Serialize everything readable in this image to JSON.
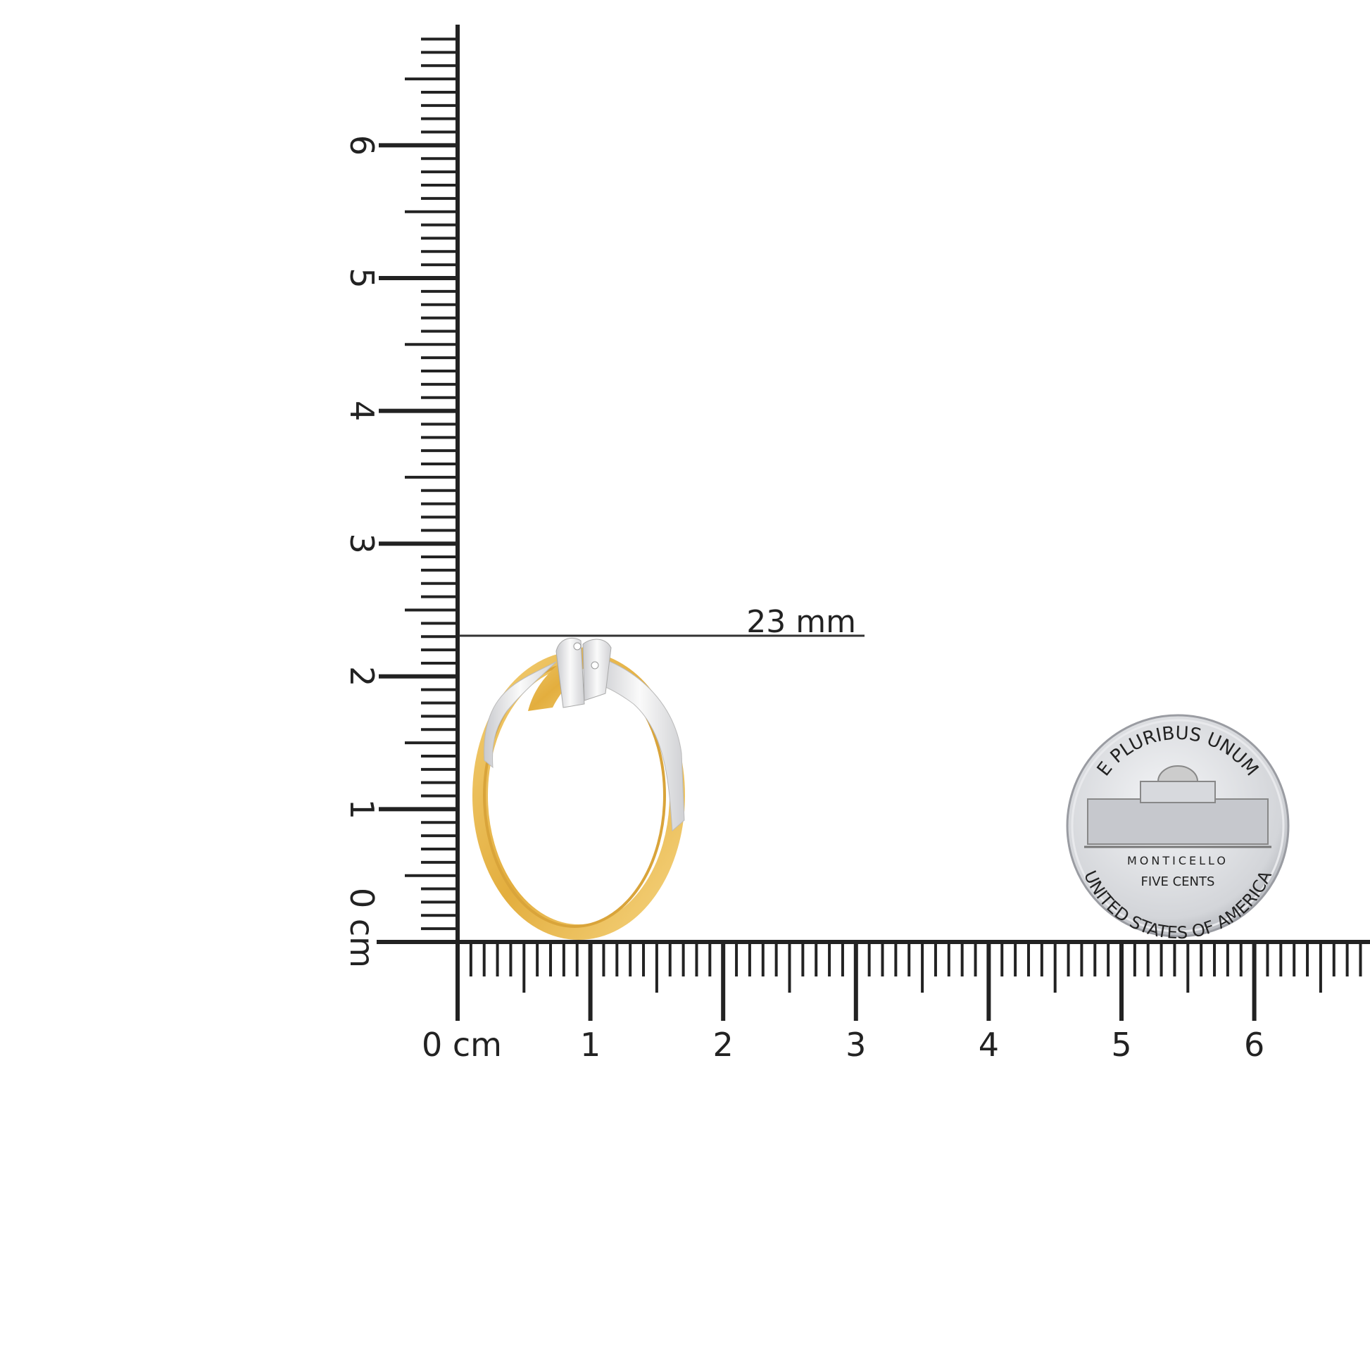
{
  "ruler": {
    "unit_label": "cm",
    "horizontal_labels": [
      "0",
      "1",
      "2",
      "3",
      "4",
      "5",
      "6"
    ],
    "vertical_labels": [
      "0",
      "1",
      "2",
      "3",
      "4",
      "5",
      "6"
    ],
    "color": "#222222"
  },
  "measurement": {
    "label": "23 mm",
    "value_mm": 23
  },
  "ring": {
    "gold_color": "#E8B850",
    "white_gold_color": "#E4E4E6"
  },
  "coin": {
    "top_text": "E PLURIBUS UNUM",
    "building_text": "MONTICELLO",
    "denomination": "FIVE CENTS",
    "bottom_text": "UNITED STATES OF AMERICA",
    "color": "#D4D6DA"
  }
}
